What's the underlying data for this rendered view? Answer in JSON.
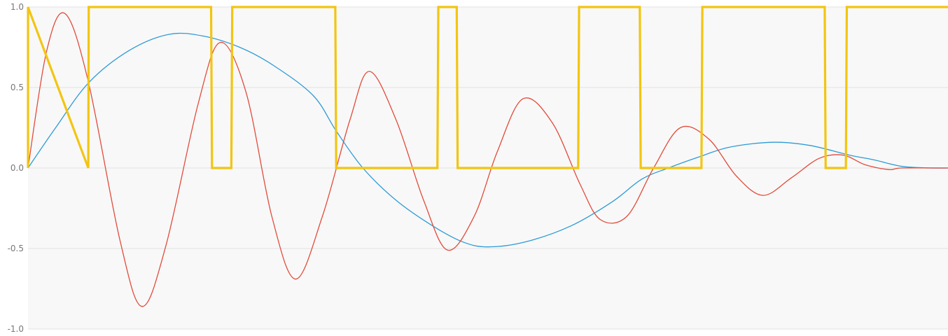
{
  "chart_data": {
    "type": "line",
    "title": "",
    "xlabel": "",
    "ylabel": "",
    "grid": true,
    "legend": "none",
    "xlim": [
      0,
      1
    ],
    "ylim": [
      -1,
      1
    ],
    "y_ticks": [
      1.0,
      0.5,
      0.0,
      -0.5,
      -1.0
    ],
    "y_tick_labels": [
      "1.0",
      "0.5",
      "0.0",
      "-0.5",
      "-1.0"
    ],
    "colors": {
      "background": "#f8f8f8",
      "grid": "#e2e2e2",
      "blue": "#2e9bd6",
      "red": "#e24b3b",
      "yellow": "#f2c511"
    },
    "series": [
      {
        "style": "smooth",
        "color": "#2e9bd6",
        "points": [
          [
            0.0,
            0.0
          ],
          [
            0.03,
            0.25
          ],
          [
            0.066,
            0.53
          ],
          [
            0.11,
            0.73
          ],
          [
            0.153,
            0.83
          ],
          [
            0.19,
            0.82
          ],
          [
            0.23,
            0.75
          ],
          [
            0.266,
            0.64
          ],
          [
            0.31,
            0.45
          ],
          [
            0.335,
            0.23
          ],
          [
            0.364,
            0.0
          ],
          [
            0.4,
            -0.2
          ],
          [
            0.44,
            -0.36
          ],
          [
            0.473,
            -0.46
          ],
          [
            0.5,
            -0.49
          ],
          [
            0.54,
            -0.46
          ],
          [
            0.59,
            -0.36
          ],
          [
            0.635,
            -0.21
          ],
          [
            0.667,
            -0.07
          ],
          [
            0.696,
            0.0
          ],
          [
            0.73,
            0.07
          ],
          [
            0.763,
            0.13
          ],
          [
            0.81,
            0.16
          ],
          [
            0.85,
            0.14
          ],
          [
            0.893,
            0.08
          ],
          [
            0.92,
            0.05
          ],
          [
            0.95,
            0.01
          ],
          [
            0.98,
            0.0
          ],
          [
            1.0,
            0.0
          ]
        ]
      },
      {
        "style": "smooth",
        "color": "#e24b3b",
        "points": [
          [
            0.0,
            0.0
          ],
          [
            0.02,
            0.72
          ],
          [
            0.04,
            0.96
          ],
          [
            0.065,
            0.55
          ],
          [
            0.1,
            -0.45
          ],
          [
            0.124,
            -0.86
          ],
          [
            0.15,
            -0.48
          ],
          [
            0.185,
            0.4
          ],
          [
            0.209,
            0.78
          ],
          [
            0.237,
            0.47
          ],
          [
            0.265,
            -0.3
          ],
          [
            0.291,
            -0.69
          ],
          [
            0.32,
            -0.3
          ],
          [
            0.35,
            0.3
          ],
          [
            0.371,
            0.6
          ],
          [
            0.4,
            0.3
          ],
          [
            0.43,
            -0.2
          ],
          [
            0.456,
            -0.51
          ],
          [
            0.485,
            -0.3
          ],
          [
            0.51,
            0.1
          ],
          [
            0.538,
            0.43
          ],
          [
            0.57,
            0.28
          ],
          [
            0.6,
            -0.1
          ],
          [
            0.622,
            -0.32
          ],
          [
            0.651,
            -0.3
          ],
          [
            0.68,
            0.0
          ],
          [
            0.709,
            0.25
          ],
          [
            0.74,
            0.18
          ],
          [
            0.77,
            -0.05
          ],
          [
            0.799,
            -0.17
          ],
          [
            0.83,
            -0.06
          ],
          [
            0.86,
            0.06
          ],
          [
            0.886,
            0.08
          ],
          [
            0.91,
            0.02
          ],
          [
            0.936,
            -0.01
          ],
          [
            0.95,
            0.0
          ],
          [
            1.0,
            0.0
          ]
        ]
      },
      {
        "style": "step",
        "color": "#f2c511",
        "points": [
          [
            0.0,
            0
          ],
          [
            0.0,
            1
          ],
          [
            0.0655,
            0
          ],
          [
            0.066,
            1
          ],
          [
            0.199,
            1
          ],
          [
            0.2,
            0
          ],
          [
            0.221,
            0
          ],
          [
            0.222,
            1
          ],
          [
            0.334,
            1
          ],
          [
            0.335,
            0
          ],
          [
            0.445,
            0
          ],
          [
            0.446,
            1
          ],
          [
            0.466,
            1
          ],
          [
            0.467,
            0
          ],
          [
            0.598,
            0
          ],
          [
            0.599,
            1
          ],
          [
            0.665,
            1
          ],
          [
            0.666,
            0
          ],
          [
            0.732,
            0
          ],
          [
            0.733,
            1
          ],
          [
            0.866,
            1
          ],
          [
            0.867,
            0
          ],
          [
            0.889,
            0
          ],
          [
            0.89,
            1
          ],
          [
            1.0,
            1
          ]
        ]
      }
    ]
  }
}
